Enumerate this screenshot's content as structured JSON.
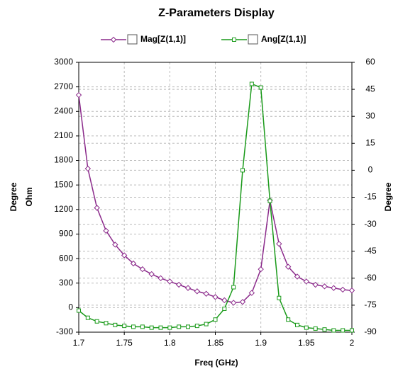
{
  "chart_data": {
    "type": "line",
    "title": "Z-Parameters Display",
    "xlabel": "Freq (GHz)",
    "ylabels": [
      "Degree",
      "Ohm"
    ],
    "y2label": "Degree",
    "x": [
      1.7,
      1.71,
      1.72,
      1.73,
      1.74,
      1.75,
      1.76,
      1.77,
      1.78,
      1.79,
      1.8,
      1.81,
      1.82,
      1.83,
      1.84,
      1.85,
      1.86,
      1.87,
      1.88,
      1.89,
      1.9,
      1.91,
      1.92,
      1.93,
      1.94,
      1.95,
      1.96,
      1.97,
      1.98,
      1.99,
      2
    ],
    "series": [
      {
        "name": "Mag[Z(1,1)]",
        "color": "#8b2a8b",
        "marker": "diamond",
        "axis": "y",
        "values": [
          2600,
          1700,
          1220,
          940,
          770,
          640,
          540,
          470,
          410,
          360,
          320,
          280,
          240,
          200,
          170,
          130,
          90,
          60,
          70,
          180,
          470,
          1310,
          780,
          500,
          380,
          320,
          280,
          260,
          240,
          220,
          210
        ]
      },
      {
        "name": "Ang[Z(1,1)]",
        "color": "#1a9a1a",
        "marker": "square",
        "axis": "y2",
        "values": [
          -78,
          -82,
          -84,
          -85,
          -86,
          -86.5,
          -87,
          -87,
          -87.5,
          -87.5,
          -87.5,
          -87,
          -87,
          -86.5,
          -85.5,
          -83,
          -77,
          -65,
          0,
          48,
          46,
          -17,
          -71,
          -83,
          -86,
          -87.5,
          -88,
          -88.5,
          -89,
          -89,
          -89
        ]
      }
    ],
    "xlim": [
      1.7,
      2
    ],
    "xticks": [
      1.7,
      1.75,
      1.8,
      1.85,
      1.9,
      1.95,
      2
    ],
    "ylim": [
      -300,
      3000
    ],
    "yticks": [
      -300,
      0,
      300,
      600,
      900,
      1200,
      1500,
      1800,
      2100,
      2400,
      2700,
      3000
    ],
    "y2lim": [
      -90,
      60
    ],
    "y2ticks": [
      -90,
      -75,
      -60,
      -45,
      -30,
      -15,
      0,
      15,
      30,
      45,
      60
    ],
    "grid": true
  }
}
